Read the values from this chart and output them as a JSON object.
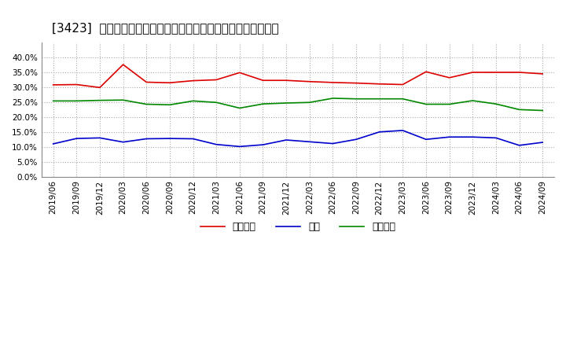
{
  "title": "[3423]  売上債権、在庫、買入債務の総資産に対する比率の推移",
  "ylim": [
    0.0,
    0.45
  ],
  "yticks": [
    0.0,
    0.05,
    0.1,
    0.15,
    0.2,
    0.25,
    0.3,
    0.35,
    0.4
  ],
  "dates": [
    "2019/06",
    "2019/09",
    "2019/12",
    "2020/03",
    "2020/06",
    "2020/09",
    "2020/12",
    "2021/03",
    "2021/06",
    "2021/09",
    "2021/12",
    "2022/03",
    "2022/06",
    "2022/09",
    "2022/12",
    "2023/03",
    "2023/06",
    "2023/09",
    "2023/12",
    "2024/03",
    "2024/06",
    "2024/09"
  ],
  "urikake": [
    0.308,
    0.309,
    0.299,
    0.376,
    0.317,
    0.315,
    0.322,
    0.325,
    0.349,
    0.323,
    0.323,
    0.319,
    0.316,
    0.314,
    0.311,
    0.309,
    0.352,
    0.332,
    0.35,
    0.35,
    0.35,
    0.345
  ],
  "zaiko": [
    0.11,
    0.128,
    0.13,
    0.116,
    0.127,
    0.128,
    0.127,
    0.108,
    0.101,
    0.107,
    0.123,
    0.117,
    0.111,
    0.125,
    0.15,
    0.155,
    0.125,
    0.133,
    0.133,
    0.13,
    0.105,
    0.115
  ],
  "kaiire": [
    0.254,
    0.254,
    0.256,
    0.257,
    0.243,
    0.241,
    0.254,
    0.249,
    0.23,
    0.244,
    0.247,
    0.249,
    0.263,
    0.261,
    0.261,
    0.261,
    0.243,
    0.243,
    0.255,
    0.244,
    0.225,
    0.222
  ],
  "urikake_color": "#dd0000",
  "zaiko_color": "#0000cc",
  "kaiire_color": "#008800",
  "legend_labels": [
    "売上債権",
    "在庫",
    "買入債務"
  ],
  "bg_color": "#ffffff",
  "plot_bg_color": "#ffffff",
  "grid_color": "#aaaaaa",
  "title_fontsize": 11,
  "tick_fontsize": 7.5,
  "legend_fontsize": 9
}
